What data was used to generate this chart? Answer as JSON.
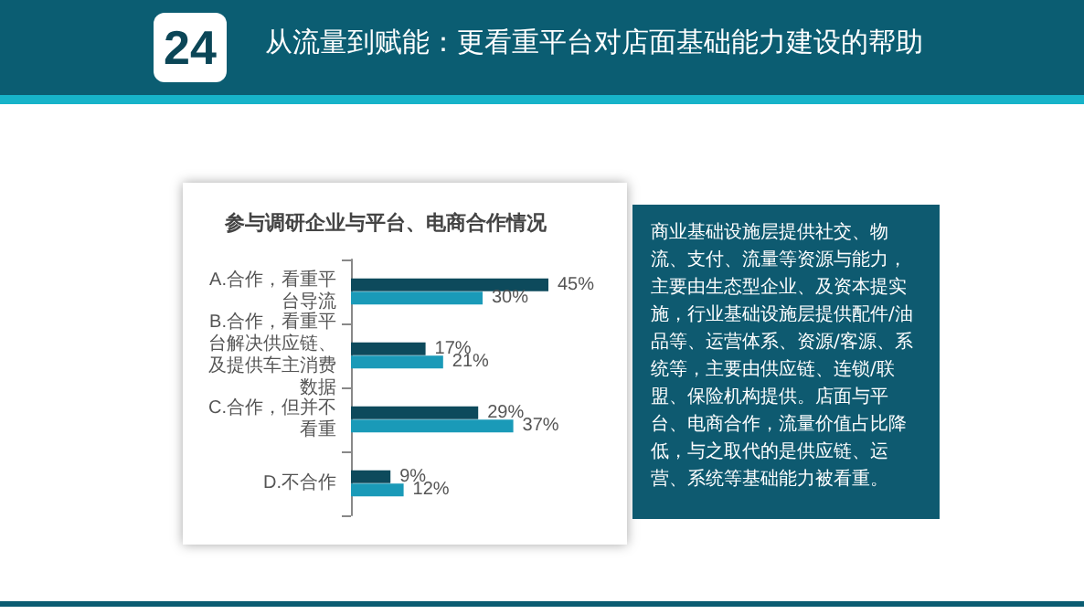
{
  "chart_data": {
    "type": "bar",
    "orientation": "horizontal",
    "title": "参与调研企业与平台、电商合作情况",
    "categories": [
      "A.合作，看重平台导流",
      "B.合作，看重平台解决供应链、及提供车主消费数据",
      "C.合作，但并不看重",
      "D.不合作"
    ],
    "series": [
      {
        "color": "#0d4a5c",
        "values": [
          45,
          17,
          29,
          9
        ],
        "value_labels": [
          "45%",
          "17%",
          "29%",
          "9%"
        ]
      },
      {
        "color": "#1a9ab8",
        "values": [
          30,
          21,
          37,
          12
        ],
        "value_labels": [
          "30%",
          "21%",
          "37%",
          "12%"
        ]
      }
    ],
    "annotations": [
      "24",
      "从流量到赋能：更看重平台对店面基础能力建设的帮助",
      "商业基础设施层提供社交、物流、支付、流量等资源与能力，主要由生态型企业、及资本提实施，行业基础设施层提供配件/油品等、运营体系、资源/客源、系统等，主要由供应链、连锁/联盟、保险机构提供。店面与平台、电商合作，流量价值占比降低，与之取代的是供应链、运营、系统等基础能力被看重。"
    ]
  }
}
